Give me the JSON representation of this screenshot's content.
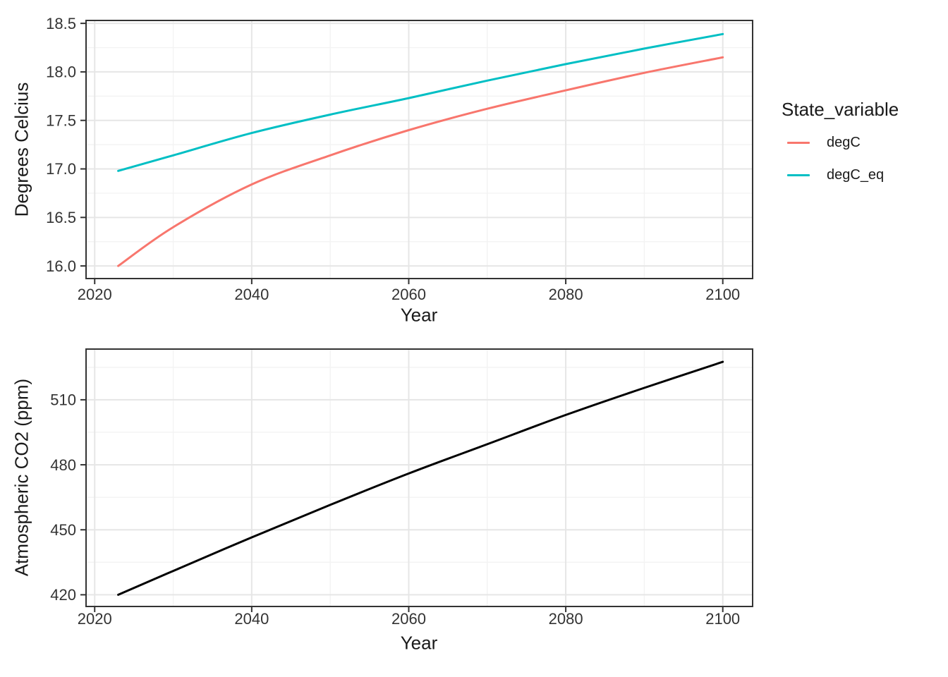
{
  "theme": {
    "background": "#FFFFFF",
    "panel_border": "#333333",
    "grid_major": "#E6E6E6",
    "grid_minor": "#F3F3F3",
    "tick_color": "#333333",
    "tick_label_color": "#333333",
    "title_color": "#1A1A1A"
  },
  "chart_data": [
    {
      "type": "line",
      "title": "",
      "xlabel": "Year",
      "ylabel": "Degrees Celcius",
      "xlim": [
        2018.9,
        2103.8
      ],
      "ylim": [
        15.87,
        18.53
      ],
      "x_ticks": [
        2020,
        2040,
        2060,
        2080,
        2100
      ],
      "x_tick_labels": [
        "2020",
        "2040",
        "2060",
        "2080",
        "2100"
      ],
      "x_minor": [
        2030,
        2050,
        2070,
        2090
      ],
      "y_ticks": [
        16.0,
        16.5,
        17.0,
        17.5,
        18.0,
        18.5
      ],
      "y_tick_labels": [
        "16.0",
        "16.5",
        "17.0",
        "17.5",
        "18.0",
        "18.5"
      ],
      "y_minor": [
        16.25,
        16.75,
        17.25,
        17.75,
        18.25
      ],
      "grid": "major+minor",
      "x": [
        2023,
        2030,
        2040,
        2050,
        2060,
        2070,
        2080,
        2090,
        2100
      ],
      "series": [
        {
          "name": "degC",
          "color": "#F8766D",
          "values": [
            16.0,
            16.4,
            16.84,
            17.14,
            17.4,
            17.62,
            17.81,
            17.99,
            18.15
          ]
        },
        {
          "name": "degC_eq",
          "color": "#00BFC4",
          "values": [
            16.98,
            17.14,
            17.37,
            17.56,
            17.73,
            17.91,
            18.08,
            18.24,
            18.39
          ]
        }
      ],
      "legend": {
        "title": "State_variable",
        "position": "right",
        "entries": [
          "degC",
          "degC_eq"
        ]
      }
    },
    {
      "type": "line",
      "title": "",
      "xlabel": "Year",
      "ylabel": "Atmospheric CO2 (ppm)",
      "xlim": [
        2018.9,
        2103.8
      ],
      "ylim": [
        414.6,
        533.4
      ],
      "x_ticks": [
        2020,
        2040,
        2060,
        2080,
        2100
      ],
      "x_tick_labels": [
        "2020",
        "2040",
        "2060",
        "2080",
        "2100"
      ],
      "x_minor": [
        2030,
        2050,
        2070,
        2090
      ],
      "y_ticks": [
        420,
        450,
        480,
        510
      ],
      "y_tick_labels": [
        "420",
        "450",
        "480",
        "510"
      ],
      "y_minor": [
        435,
        465,
        495,
        525
      ],
      "grid": "major+minor",
      "x": [
        2023,
        2030,
        2040,
        2050,
        2060,
        2070,
        2080,
        2090,
        2100
      ],
      "series": [
        {
          "name": "Atmospheric CO2",
          "color": "#000000",
          "values": [
            420,
            431,
            446.5,
            461.5,
            476,
            489.5,
            503,
            515.5,
            527.5
          ]
        }
      ],
      "legend": null
    }
  ]
}
